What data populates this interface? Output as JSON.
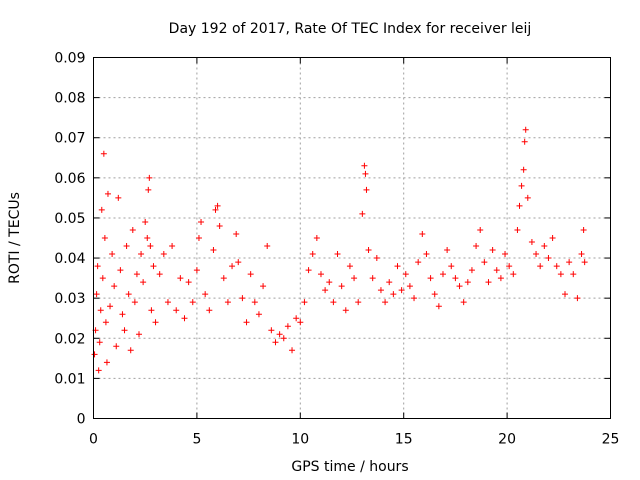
{
  "chart_data": {
    "type": "scatter",
    "title": "Day 192 of 2017, Rate Of TEC Index for receiver leij",
    "xlabel": "GPS time / hours",
    "ylabel": "ROTI / TECUs",
    "xlim": [
      0,
      25
    ],
    "ylim": [
      0,
      0.09
    ],
    "x_ticks": [
      0,
      5,
      10,
      15,
      20,
      25
    ],
    "x_tick_labels": [
      "0",
      "5",
      "10",
      "15",
      "20",
      "25"
    ],
    "y_ticks": [
      0,
      0.01,
      0.02,
      0.03,
      0.04,
      0.05,
      0.06,
      0.07,
      0.08,
      0.09
    ],
    "y_tick_labels": [
      "0",
      "0.01",
      "0.02",
      "0.03",
      "0.04",
      "0.05",
      "0.06",
      "0.07",
      "0.08",
      "0.09"
    ],
    "grid": true,
    "marker": "+",
    "color": "#ff0000",
    "series": [
      {
        "name": "ROTI",
        "points": [
          [
            0.05,
            0.016
          ],
          [
            0.1,
            0.022
          ],
          [
            0.15,
            0.031
          ],
          [
            0.2,
            0.038
          ],
          [
            0.25,
            0.012
          ],
          [
            0.3,
            0.019
          ],
          [
            0.35,
            0.027
          ],
          [
            0.4,
            0.052
          ],
          [
            0.45,
            0.035
          ],
          [
            0.5,
            0.066
          ],
          [
            0.55,
            0.045
          ],
          [
            0.6,
            0.024
          ],
          [
            0.65,
            0.014
          ],
          [
            0.7,
            0.056
          ],
          [
            0.8,
            0.028
          ],
          [
            0.9,
            0.041
          ],
          [
            1.0,
            0.033
          ],
          [
            1.1,
            0.018
          ],
          [
            1.2,
            0.055
          ],
          [
            1.3,
            0.037
          ],
          [
            1.4,
            0.026
          ],
          [
            1.5,
            0.022
          ],
          [
            1.6,
            0.043
          ],
          [
            1.7,
            0.031
          ],
          [
            1.8,
            0.017
          ],
          [
            1.9,
            0.047
          ],
          [
            2.0,
            0.029
          ],
          [
            2.1,
            0.036
          ],
          [
            2.2,
            0.021
          ],
          [
            2.3,
            0.041
          ],
          [
            2.4,
            0.034
          ],
          [
            2.5,
            0.049
          ],
          [
            2.6,
            0.045
          ],
          [
            2.65,
            0.057
          ],
          [
            2.7,
            0.06
          ],
          [
            2.75,
            0.043
          ],
          [
            2.8,
            0.027
          ],
          [
            2.9,
            0.038
          ],
          [
            3.0,
            0.024
          ],
          [
            3.2,
            0.036
          ],
          [
            3.4,
            0.041
          ],
          [
            3.6,
            0.029
          ],
          [
            3.8,
            0.043
          ],
          [
            4.0,
            0.027
          ],
          [
            4.2,
            0.035
          ],
          [
            4.4,
            0.025
          ],
          [
            4.6,
            0.034
          ],
          [
            4.8,
            0.029
          ],
          [
            5.0,
            0.037
          ],
          [
            5.1,
            0.045
          ],
          [
            5.2,
            0.049
          ],
          [
            5.4,
            0.031
          ],
          [
            5.6,
            0.027
          ],
          [
            5.8,
            0.042
          ],
          [
            5.9,
            0.052
          ],
          [
            6.0,
            0.053
          ],
          [
            6.1,
            0.048
          ],
          [
            6.3,
            0.035
          ],
          [
            6.5,
            0.029
          ],
          [
            6.7,
            0.038
          ],
          [
            6.9,
            0.046
          ],
          [
            7.0,
            0.039
          ],
          [
            7.2,
            0.03
          ],
          [
            7.4,
            0.024
          ],
          [
            7.6,
            0.036
          ],
          [
            7.8,
            0.029
          ],
          [
            8.0,
            0.026
          ],
          [
            8.2,
            0.033
          ],
          [
            8.4,
            0.043
          ],
          [
            8.6,
            0.022
          ],
          [
            8.8,
            0.019
          ],
          [
            9.0,
            0.021
          ],
          [
            9.2,
            0.02
          ],
          [
            9.4,
            0.023
          ],
          [
            9.6,
            0.017
          ],
          [
            9.8,
            0.025
          ],
          [
            10.0,
            0.024
          ],
          [
            10.2,
            0.029
          ],
          [
            10.4,
            0.037
          ],
          [
            10.6,
            0.041
          ],
          [
            10.8,
            0.045
          ],
          [
            11.0,
            0.036
          ],
          [
            11.2,
            0.032
          ],
          [
            11.4,
            0.034
          ],
          [
            11.6,
            0.029
          ],
          [
            11.8,
            0.041
          ],
          [
            12.0,
            0.033
          ],
          [
            12.2,
            0.027
          ],
          [
            12.4,
            0.038
          ],
          [
            12.6,
            0.035
          ],
          [
            12.8,
            0.029
          ],
          [
            13.0,
            0.051
          ],
          [
            13.1,
            0.063
          ],
          [
            13.15,
            0.061
          ],
          [
            13.2,
            0.057
          ],
          [
            13.3,
            0.042
          ],
          [
            13.5,
            0.035
          ],
          [
            13.7,
            0.04
          ],
          [
            13.9,
            0.032
          ],
          [
            14.1,
            0.029
          ],
          [
            14.3,
            0.034
          ],
          [
            14.5,
            0.031
          ],
          [
            14.7,
            0.038
          ],
          [
            14.9,
            0.032
          ],
          [
            15.1,
            0.036
          ],
          [
            15.3,
            0.033
          ],
          [
            15.5,
            0.03
          ],
          [
            15.7,
            0.039
          ],
          [
            15.9,
            0.046
          ],
          [
            16.1,
            0.041
          ],
          [
            16.3,
            0.035
          ],
          [
            16.5,
            0.031
          ],
          [
            16.7,
            0.028
          ],
          [
            16.9,
            0.036
          ],
          [
            17.1,
            0.042
          ],
          [
            17.3,
            0.038
          ],
          [
            17.5,
            0.035
          ],
          [
            17.7,
            0.033
          ],
          [
            17.9,
            0.029
          ],
          [
            18.1,
            0.034
          ],
          [
            18.3,
            0.037
          ],
          [
            18.5,
            0.043
          ],
          [
            18.7,
            0.047
          ],
          [
            18.9,
            0.039
          ],
          [
            19.1,
            0.034
          ],
          [
            19.3,
            0.042
          ],
          [
            19.5,
            0.037
          ],
          [
            19.7,
            0.035
          ],
          [
            19.9,
            0.041
          ],
          [
            20.1,
            0.038
          ],
          [
            20.3,
            0.036
          ],
          [
            20.5,
            0.047
          ],
          [
            20.6,
            0.053
          ],
          [
            20.7,
            0.058
          ],
          [
            20.8,
            0.062
          ],
          [
            20.85,
            0.069
          ],
          [
            20.9,
            0.072
          ],
          [
            21.0,
            0.055
          ],
          [
            21.2,
            0.044
          ],
          [
            21.4,
            0.041
          ],
          [
            21.6,
            0.038
          ],
          [
            21.8,
            0.043
          ],
          [
            22.0,
            0.04
          ],
          [
            22.2,
            0.045
          ],
          [
            22.4,
            0.038
          ],
          [
            22.6,
            0.036
          ],
          [
            22.8,
            0.031
          ],
          [
            23.0,
            0.039
          ],
          [
            23.2,
            0.036
          ],
          [
            23.4,
            0.03
          ],
          [
            23.6,
            0.041
          ],
          [
            23.7,
            0.047
          ],
          [
            23.75,
            0.039
          ]
        ]
      }
    ]
  }
}
